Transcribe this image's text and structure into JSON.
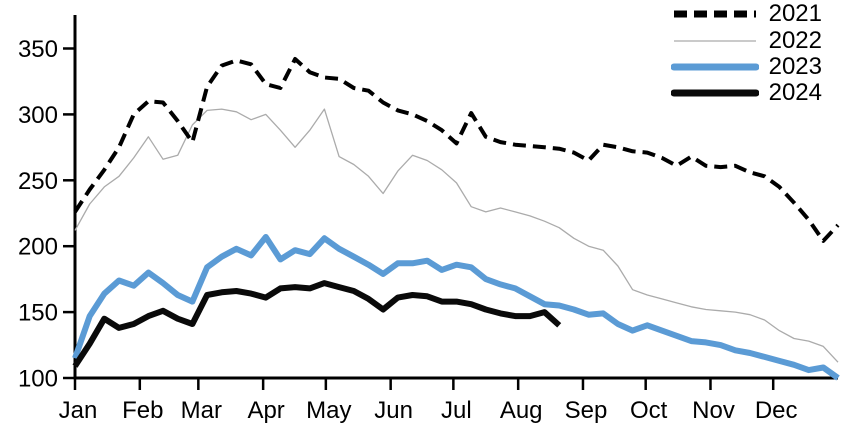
{
  "chart_data": {
    "type": "line",
    "title": "",
    "description": "Weekly values for four years, Jan-Dec",
    "x_axis": {
      "tick_labels": [
        "Jan",
        "Feb",
        "Mar",
        "Apr",
        "May",
        "Jun",
        "Jul",
        "Aug",
        "Sep",
        "Oct",
        "Nov",
        "Dec"
      ],
      "month_start_days": [
        0,
        31,
        59,
        90,
        120,
        151,
        181,
        212,
        243,
        273,
        304,
        334
      ],
      "days_per_year": 365,
      "unit": "week"
    },
    "y_axis": {
      "ticks": [
        100,
        150,
        200,
        250,
        300,
        350
      ],
      "min": 100,
      "max": 375,
      "grid": false
    },
    "legend_position": "top-right",
    "series": [
      {
        "name": "2021",
        "color": "#000000",
        "style": "dashed",
        "width": 4,
        "weekly_values": [
          226,
          243,
          258,
          275,
          300,
          310,
          309,
          295,
          279,
          321,
          337,
          341,
          338,
          323,
          320,
          342,
          332,
          328,
          327,
          320,
          318,
          309,
          303,
          300,
          295,
          288,
          278,
          301,
          283,
          279,
          277,
          276,
          275,
          274,
          271,
          265,
          277,
          275,
          272,
          271,
          267,
          261,
          268,
          261,
          260,
          261,
          256,
          253,
          245,
          233,
          220,
          204,
          216
        ]
      },
      {
        "name": "2022",
        "color": "#ABABAB",
        "style": "solid",
        "width": 1.3,
        "weekly_values": [
          212,
          232,
          245,
          253,
          267,
          283,
          266,
          269,
          292,
          303,
          304,
          302,
          296,
          300,
          288,
          275,
          288,
          304,
          268,
          262,
          253,
          240,
          257,
          269,
          265,
          258,
          248,
          230,
          226,
          229,
          226,
          223,
          219,
          214,
          206,
          200,
          197,
          185,
          167,
          163,
          160,
          157,
          154,
          152,
          151,
          150,
          148,
          144,
          136,
          130,
          128,
          124,
          112
        ]
      },
      {
        "name": "2023",
        "color": "#5B9BD5",
        "style": "solid",
        "width": 6,
        "weekly_values": [
          115,
          147,
          164,
          174,
          170,
          180,
          172,
          163,
          158,
          184,
          192,
          198,
          193,
          207,
          190,
          197,
          194,
          206,
          198,
          192,
          186,
          179,
          187,
          187,
          189,
          182,
          186,
          184,
          175,
          171,
          168,
          162,
          156,
          155,
          152,
          148,
          149,
          141,
          136,
          140,
          136,
          132,
          128,
          127,
          125,
          121,
          119,
          116,
          113,
          110,
          106,
          108,
          100
        ]
      },
      {
        "name": "2024",
        "color": "#0A0A0A",
        "style": "solid",
        "width": 6,
        "weekly_values": [
          109,
          126,
          145,
          138,
          141,
          147,
          151,
          145,
          141,
          163,
          165,
          166,
          164,
          161,
          168,
          169,
          168,
          172,
          169,
          166,
          160,
          152,
          161,
          163,
          162,
          158,
          158,
          156,
          152,
          149,
          147,
          147,
          150,
          140
        ]
      }
    ]
  }
}
